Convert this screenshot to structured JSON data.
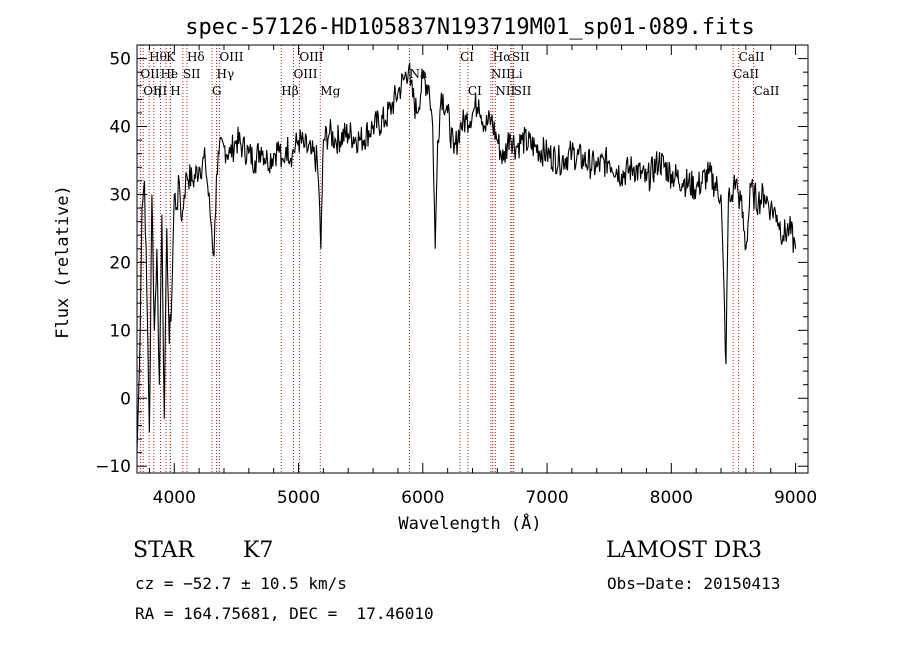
{
  "chart_data": {
    "type": "line",
    "title": "spec-57126-HD105837N193719M01_sp01-089.fits",
    "xlabel": "Wavelength (Å)",
    "ylabel": "Flux (relative)",
    "xlim": [
      3700,
      9100
    ],
    "ylim": [
      -11,
      52
    ],
    "xticks": [
      4000,
      5000,
      6000,
      7000,
      8000,
      9000
    ],
    "yticks": [
      -10,
      0,
      10,
      20,
      30,
      40,
      50
    ],
    "grid": false,
    "series": [
      {
        "x": [
          3700,
          3720,
          3740,
          3760,
          3780,
          3800,
          3820,
          3840,
          3860,
          3880,
          3900,
          3920,
          3940,
          3960,
          3980,
          4000,
          4020,
          4040,
          4060,
          4080,
          4100,
          4150,
          4200,
          4250,
          4300,
          4320,
          4340,
          4360,
          4400,
          4450,
          4500,
          4550,
          4600,
          4650,
          4700,
          4750,
          4800,
          4850,
          4860,
          4880,
          4900,
          4950,
          5000,
          5050,
          5100,
          5150,
          5170,
          5180,
          5190,
          5200,
          5250,
          5300,
          5400,
          5500,
          5600,
          5700,
          5750,
          5800,
          5850,
          5890,
          5900,
          5950,
          6000,
          6050,
          6080,
          6100,
          6120,
          6150,
          6200,
          6250,
          6300,
          6350,
          6400,
          6450,
          6500,
          6550,
          6600,
          6650,
          6700,
          6750,
          6800,
          6900,
          7000,
          7100,
          7200,
          7300,
          7400,
          7500,
          7600,
          7700,
          7800,
          7900,
          8000,
          8100,
          8200,
          8300,
          8400,
          8440,
          8460,
          8480,
          8500,
          8520,
          8540,
          8560,
          8600,
          8640,
          8660,
          8700,
          8750,
          8800,
          8850,
          8900,
          8950,
          9000
        ],
        "y": [
          -8,
          5,
          28,
          32,
          15,
          -5,
          30,
          10,
          22,
          2,
          27,
          -3,
          25,
          8,
          15,
          30,
          28,
          32,
          26,
          30,
          33,
          32,
          34,
          35,
          25,
          21,
          33,
          36,
          37,
          36,
          38,
          37,
          36,
          35,
          37,
          35,
          36,
          37,
          34,
          35,
          37,
          36,
          38,
          37,
          36,
          35,
          28,
          22,
          30,
          38,
          39,
          38,
          39,
          38,
          40,
          41,
          43,
          45,
          47,
          49,
          46,
          42,
          47,
          46,
          40,
          22,
          38,
          45,
          42,
          36,
          40,
          41,
          42,
          44,
          40,
          41,
          38,
          35,
          39,
          37,
          38,
          37,
          36,
          35,
          36,
          35,
          34,
          35,
          33,
          34,
          32,
          35,
          33,
          32,
          31,
          33,
          30,
          5,
          30,
          29,
          31,
          32,
          30,
          29,
          22,
          31,
          30,
          29,
          30,
          28,
          27,
          24,
          25,
          22
        ]
      }
    ],
    "spectral_lines": [
      {
        "label": "Hθ",
        "x": 3798,
        "row": 1
      },
      {
        "label": "K",
        "x": 3934,
        "row": 1
      },
      {
        "label": "Hδ",
        "x": 4102,
        "row": 1
      },
      {
        "label": "OIII",
        "x": 4363,
        "row": 1
      },
      {
        "label": "OIII",
        "x": 5007,
        "row": 1
      },
      {
        "label": "CI",
        "x": 6300,
        "row": 1
      },
      {
        "label": "Hα",
        "x": 6563,
        "row": 1
      },
      {
        "label": "SII",
        "x": 6717,
        "row": 1
      },
      {
        "label": "CaII",
        "x": 8542,
        "row": 1
      },
      {
        "label": "OII",
        "x": 3727,
        "row": 2
      },
      {
        "label": "He",
        "x": 3889,
        "row": 2
      },
      {
        "label": "I",
        "x": 3968,
        "row": 2
      },
      {
        "label": "SII",
        "x": 4069,
        "row": 2
      },
      {
        "label": "Hγ",
        "x": 4340,
        "row": 2
      },
      {
        "label": "OIII",
        "x": 4959,
        "row": 2
      },
      {
        "label": "Na",
        "x": 5893,
        "row": 2
      },
      {
        "label": "NII",
        "x": 6548,
        "row": 2
      },
      {
        "label": "Li",
        "x": 6708,
        "row": 2
      },
      {
        "label": "CaII",
        "x": 8498,
        "row": 2
      },
      {
        "label": "OIII",
        "x": 3750,
        "row": 3
      },
      {
        "label": "η",
        "x": 3835,
        "row": 3
      },
      {
        "label": "H",
        "x": 3968,
        "row": 3
      },
      {
        "label": "G",
        "x": 4304,
        "row": 3
      },
      {
        "label": "Hβ",
        "x": 4861,
        "row": 3
      },
      {
        "label": "Mg",
        "x": 5175,
        "row": 3
      },
      {
        "label": "CI",
        "x": 6363,
        "row": 3
      },
      {
        "label": "NII",
        "x": 6584,
        "row": 3
      },
      {
        "label": "SII",
        "x": 6731,
        "row": 3
      },
      {
        "label": "CaII",
        "x": 8662,
        "row": 3
      }
    ]
  },
  "info": {
    "object_class": "STAR",
    "subclass": "K7",
    "survey": "LAMOST DR3",
    "cz": "cz = −52.7 ± 10.5 km/s",
    "obs_date": "Obs−Date: 20150413",
    "coords": "RA = 164.75681, DEC =  17.46010"
  }
}
